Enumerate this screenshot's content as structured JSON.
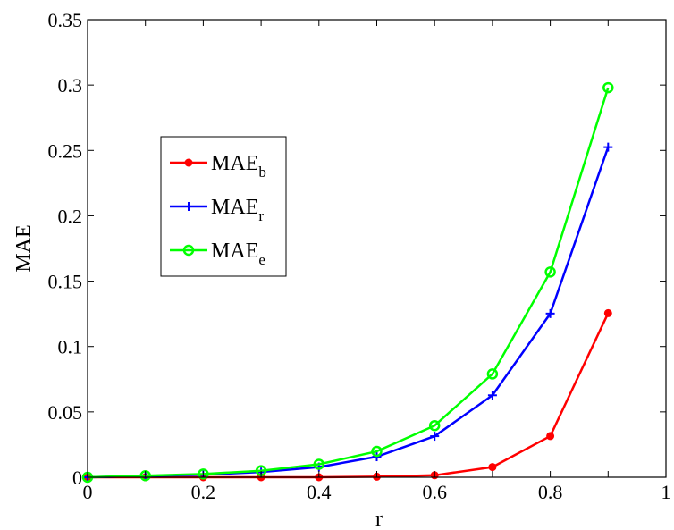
{
  "chart_data": {
    "type": "line",
    "title": "",
    "xlabel": "r",
    "ylabel": "MAE",
    "xlim": [
      0,
      1
    ],
    "ylim": [
      0,
      0.35
    ],
    "x_ticks": [
      0,
      0.1,
      0.2,
      0.3,
      0.4,
      0.5,
      0.6,
      0.7,
      0.8,
      0.9,
      1
    ],
    "x_tick_labels": [
      "0",
      "",
      "0.2",
      "",
      "0.4",
      "",
      "0.6",
      "",
      "0.8",
      "",
      "1"
    ],
    "y_ticks": [
      0,
      0.05,
      0.1,
      0.15,
      0.2,
      0.25,
      0.3,
      0.35
    ],
    "y_tick_labels": [
      "0",
      "0.05",
      "0.1",
      "0.15",
      "0.2",
      "0.25",
      "0.3",
      "0.35"
    ],
    "grid": false,
    "legend_position": "upper-left",
    "x": [
      0,
      0.1,
      0.2,
      0.3,
      0.4,
      0.5,
      0.6,
      0.7,
      0.8,
      0.9
    ],
    "series": [
      {
        "name": "MAE_b",
        "label_main": "MAE",
        "label_sub": "b",
        "color": "#ff0000",
        "marker": "dot",
        "values": [
          0.0,
          0.0,
          0.0,
          0.0,
          0.0,
          0.0004,
          0.0015,
          0.0078,
          0.0315,
          0.1255
        ]
      },
      {
        "name": "MAE_r",
        "label_main": "MAE",
        "label_sub": "r",
        "color": "#0000ff",
        "marker": "plus",
        "values": [
          0.0,
          0.001,
          0.002,
          0.004,
          0.0078,
          0.0157,
          0.0314,
          0.0627,
          0.1252,
          0.2525
        ]
      },
      {
        "name": "MAE_e",
        "label_main": "MAE",
        "label_sub": "e",
        "color": "#00ff00",
        "marker": "circle",
        "values": [
          0.0,
          0.0012,
          0.0025,
          0.005,
          0.0099,
          0.0198,
          0.0395,
          0.079,
          0.157,
          0.298
        ]
      }
    ]
  }
}
